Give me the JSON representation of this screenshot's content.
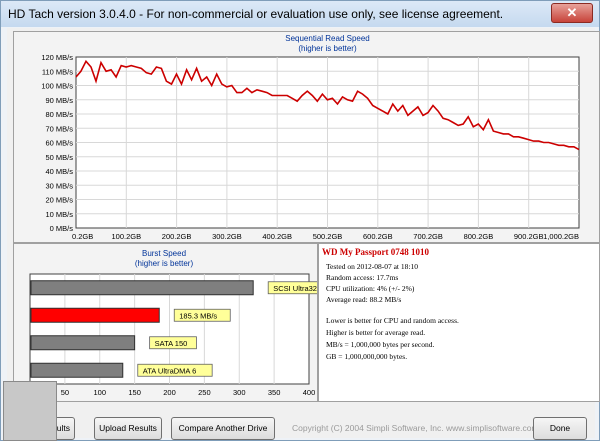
{
  "window": {
    "title": "HD Tach version 3.0.4.0  - For non-commercial or evaluation use only, see license agreement.",
    "close_icon": "close-icon"
  },
  "colors": {
    "line": "#cc0000",
    "highlight": "#ff0000",
    "bar": "#7f7f7f",
    "label_bg": "#ffff99",
    "grid": "#d8d8d8"
  },
  "chart_data": [
    {
      "type": "line",
      "title": "Sequential Read Speed",
      "subtitle": "(higher is better)",
      "x_ticks": [
        "0.2GB",
        "100.2GB",
        "200.2GB",
        "300.2GB",
        "400.2GB",
        "500.2GB",
        "600.2GB",
        "700.2GB",
        "800.2GB",
        "900.2GB",
        "1,000.2GB"
      ],
      "y_ticks": [
        "0 MB/s",
        "10 MB/s",
        "20 MB/s",
        "30 MB/s",
        "40 MB/s",
        "50 MB/s",
        "60 MB/s",
        "70 MB/s",
        "80 MB/s",
        "90 MB/s",
        "100 MB/s",
        "110 MB/s",
        "120 MB/s"
      ],
      "xlim": [
        0.2,
        1000.2
      ],
      "ylim": [
        0,
        120
      ],
      "grid": true,
      "series": [
        {
          "x": [
            0.2,
            10,
            20,
            30,
            40,
            50,
            60,
            70,
            80,
            90,
            100,
            110,
            120,
            130,
            140,
            150,
            160,
            170,
            180,
            190,
            200,
            210,
            220,
            230,
            240,
            250,
            260,
            270,
            280,
            290,
            300,
            310,
            320,
            330,
            340,
            350,
            360,
            370,
            380,
            390,
            400,
            410,
            420,
            430,
            440,
            450,
            460,
            470,
            480,
            490,
            500,
            510,
            520,
            530,
            540,
            550,
            560,
            570,
            580,
            590,
            600,
            610,
            620,
            630,
            640,
            650,
            660,
            670,
            680,
            690,
            700,
            710,
            720,
            730,
            740,
            750,
            760,
            770,
            780,
            790,
            800,
            810,
            820,
            830,
            840,
            850,
            860,
            870,
            880,
            890,
            900,
            910,
            920,
            930,
            940,
            950,
            960,
            970,
            980,
            990,
            1000.2
          ],
          "y": [
            106,
            110,
            117,
            113,
            103,
            116,
            110,
            111,
            106,
            114,
            113,
            114,
            113,
            112,
            109,
            108,
            113,
            112,
            103,
            101,
            108,
            101,
            111,
            104,
            112,
            103,
            106,
            100,
            108,
            101,
            99,
            100,
            95,
            95,
            98,
            95,
            97,
            96,
            95,
            93,
            93,
            93,
            93,
            91,
            89,
            93,
            96,
            93,
            89,
            94,
            90,
            91,
            87,
            92,
            90,
            89,
            96,
            94,
            91,
            86,
            84,
            82,
            80,
            87,
            82,
            86,
            79,
            82,
            85,
            79,
            81,
            86,
            82,
            77,
            76,
            74,
            72,
            73,
            78,
            71,
            73,
            69,
            76,
            68,
            67,
            66,
            66,
            64,
            64,
            63,
            62,
            61,
            61,
            60,
            60,
            59,
            58,
            58,
            57,
            57,
            55
          ]
        }
      ]
    },
    {
      "type": "bar",
      "title": "Burst Speed",
      "subtitle": "(higher is better)",
      "categories": [
        "SCSI Ultra320",
        "185.3 MB/s",
        "SATA 150",
        "ATA UltraDMA 6"
      ],
      "values": [
        320,
        185.3,
        150,
        133
      ],
      "x_ticks": [
        "0",
        "50",
        "100",
        "150",
        "200",
        "250",
        "300",
        "350",
        "400"
      ],
      "xlim": [
        0,
        400
      ]
    }
  ],
  "info": {
    "title": "WD My Passport 0748 1010",
    "lines": [
      "Tested on 2012-08-07 at 18:10",
      "Random access: 17.7ms",
      "CPU utilization: 4% (+/- 2%)",
      "Average read: 88.2 MB/s"
    ],
    "notes": [
      "Lower is better for CPU and random access.",
      "Higher is better for average read.",
      "MB/s = 1,000,000 bytes per second.",
      "GB = 1,000,000,000 bytes."
    ]
  },
  "buttons": {
    "save": "Save Results",
    "upload": "Upload Results",
    "compare": "Compare Another Drive",
    "done": "Done"
  },
  "footer": {
    "copyright": "Copyright (C) 2004 Simpli Software, Inc. www.simplisoftware.com"
  }
}
